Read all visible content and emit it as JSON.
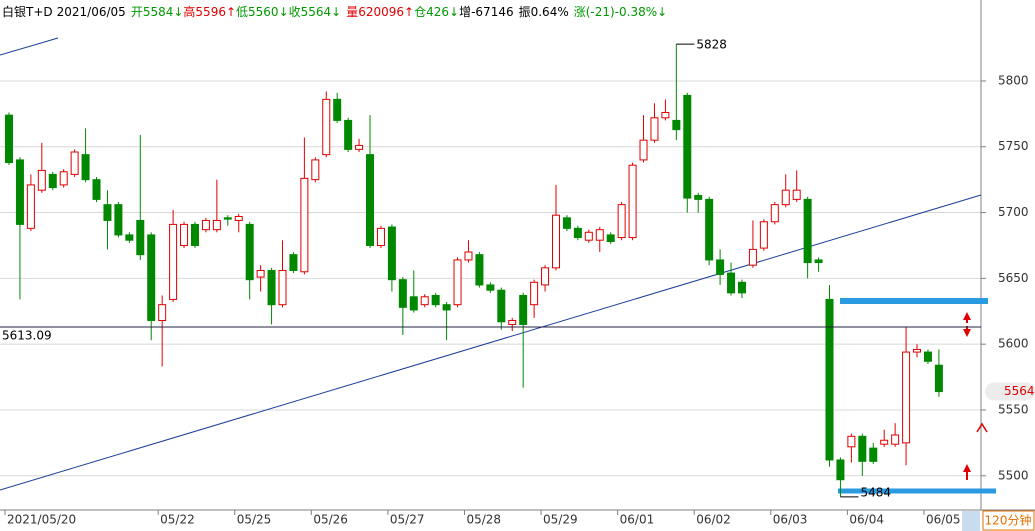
{
  "chart_data": {
    "type": "candlestick",
    "header": {
      "symbol": "白银T+D",
      "date": "2021/06/05",
      "items": [
        {
          "text": "开5584↓",
          "color": "#009900"
        },
        {
          "text": "高5596↑",
          "color": "#e00000"
        },
        {
          "text": "低5560↓",
          "color": "#009900"
        },
        {
          "text": "收5564↓",
          "color": "#009900"
        },
        {
          "text": "量620096↑",
          "color": "#e00000"
        },
        {
          "text": "仓426↓",
          "color": "#009900"
        },
        {
          "text": "增-67146",
          "color": "#000000"
        },
        {
          "text": "振0.64%",
          "color": "#000000"
        },
        {
          "text": "涨(-21)-0.38%↓",
          "color": "#009900"
        }
      ]
    },
    "period": "120分钟",
    "categories": [
      "2021/05/20",
      null,
      null,
      null,
      null,
      null,
      null,
      null,
      null,
      null,
      null,
      null,
      null,
      null,
      "05/22",
      null,
      null,
      null,
      null,
      null,
      null,
      "05/25",
      null,
      null,
      null,
      null,
      null,
      null,
      "05/26",
      null,
      null,
      null,
      null,
      null,
      null,
      "05/27",
      null,
      null,
      null,
      null,
      null,
      null,
      "05/28",
      null,
      null,
      null,
      null,
      null,
      null,
      "05/29",
      null,
      null,
      null,
      null,
      null,
      null,
      "06/01",
      null,
      null,
      null,
      null,
      null,
      null,
      "06/02",
      null,
      null,
      null,
      null,
      null,
      null,
      "06/03",
      null,
      null,
      null,
      null,
      null,
      null,
      "06/04",
      null,
      null,
      null,
      null,
      null,
      null,
      "06/05",
      null
    ],
    "open": [
      5774,
      5740,
      5688,
      5717,
      5729,
      5721,
      5729,
      5744,
      5725,
      5706,
      5706,
      5683,
      5694,
      5683,
      5618,
      5634,
      5675,
      5691,
      5687,
      5687,
      5696,
      5694,
      5691,
      5651,
      5656,
      5630,
      5668,
      5655,
      5725,
      5744,
      5786,
      5770,
      5748,
      5744,
      5675,
      5689,
      5649,
      5636,
      5630,
      5637,
      5630,
      5630,
      5664,
      5668,
      5645,
      5641,
      5615,
      5637,
      5630,
      5645,
      5658,
      5696,
      5688,
      5679,
      5679,
      5683,
      5681,
      5681,
      5740,
      5755,
      5772,
      5770,
      5789,
      5713,
      5710,
      5664,
      5654,
      5647,
      5660,
      5673,
      5693,
      5706,
      5710,
      5710,
      5664,
      5634,
      5512,
      5522,
      5530,
      5521,
      5524,
      5524,
      5525,
      5594,
      5594,
      5584
    ],
    "high": [
      5776,
      5742,
      5729,
      5753,
      5731,
      5733,
      5748,
      5764,
      5727,
      5717,
      5708,
      5685,
      5759,
      5685,
      5637,
      5702,
      5693,
      5693,
      5696,
      5725,
      5698,
      5699,
      5693,
      5660,
      5658,
      5679,
      5670,
      5757,
      5742,
      5792,
      5791,
      5772,
      5756,
      5774,
      5690,
      5691,
      5651,
      5656,
      5638,
      5639,
      5632,
      5666,
      5679,
      5670,
      5647,
      5643,
      5620,
      5639,
      5649,
      5660,
      5721,
      5698,
      5690,
      5687,
      5689,
      5685,
      5708,
      5738,
      5774,
      5783,
      5786,
      5828,
      5791,
      5715,
      5712,
      5672,
      5662,
      5649,
      5694,
      5695,
      5708,
      5729,
      5732,
      5712,
      5666,
      5645,
      5514,
      5532,
      5532,
      5525,
      5535,
      5540,
      5613,
      5600,
      5596,
      5596
    ],
    "low": [
      5736,
      5634,
      5686,
      5715,
      5717,
      5719,
      5727,
      5723,
      5708,
      5672,
      5681,
      5677,
      5664,
      5603,
      5583,
      5632,
      5673,
      5673,
      5685,
      5685,
      5690,
      5685,
      5634,
      5640,
      5615,
      5628,
      5654,
      5653,
      5723,
      5742,
      5768,
      5746,
      5746,
      5673,
      5673,
      5640,
      5607,
      5624,
      5628,
      5628,
      5603,
      5628,
      5662,
      5643,
      5639,
      5611,
      5610,
      5567,
      5620,
      5640,
      5656,
      5686,
      5679,
      5677,
      5670,
      5676,
      5679,
      5679,
      5738,
      5753,
      5770,
      5755,
      5700,
      5700,
      5660,
      5645,
      5637,
      5635,
      5658,
      5671,
      5691,
      5704,
      5708,
      5650,
      5655,
      5507,
      5484,
      5510,
      5500,
      5509,
      5522,
      5522,
      5508,
      5590,
      5585,
      5560
    ],
    "close": [
      5738,
      5691,
      5721,
      5732,
      5719,
      5731,
      5746,
      5725,
      5710,
      5694,
      5683,
      5679,
      5668,
      5618,
      5630,
      5691,
      5691,
      5675,
      5694,
      5694,
      5695,
      5697,
      5649,
      5656,
      5630,
      5656,
      5656,
      5726,
      5740,
      5786,
      5770,
      5748,
      5751,
      5675,
      5688,
      5649,
      5628,
      5626,
      5636,
      5630,
      5626,
      5664,
      5670,
      5645,
      5641,
      5617,
      5618,
      5615,
      5647,
      5658,
      5698,
      5688,
      5681,
      5685,
      5687,
      5678,
      5706,
      5736,
      5755,
      5772,
      5776,
      5763,
      5711,
      5710,
      5664,
      5653,
      5639,
      5639,
      5672,
      5693,
      5706,
      5717,
      5717,
      5662,
      5662,
      5512,
      5497,
      5530,
      5511,
      5511,
      5527,
      5531,
      5594,
      5596,
      5587,
      5564
    ],
    "up_color": "#e00000",
    "down_color": "#008800",
    "reference_line": 5613.09,
    "ylim": [
      5474,
      5861.5
    ],
    "yticks": [
      5500,
      5550,
      5600,
      5650,
      5700,
      5750,
      5800
    ],
    "grid": true
  }
}
